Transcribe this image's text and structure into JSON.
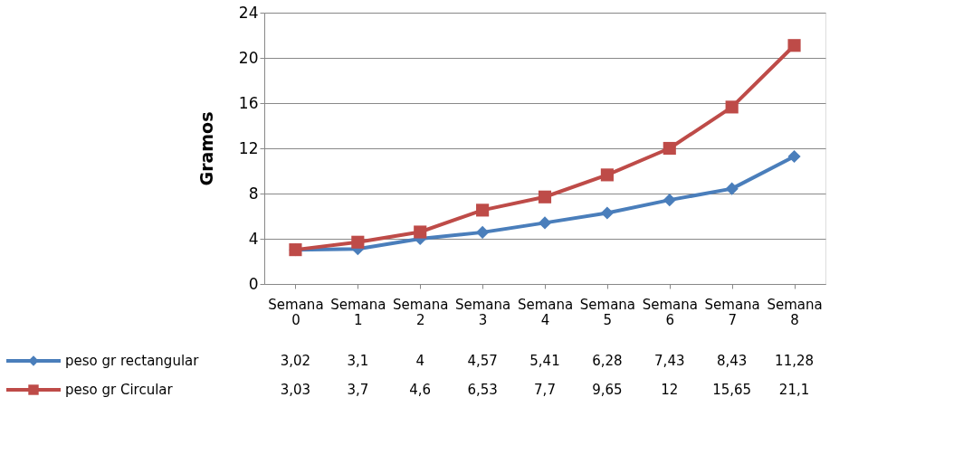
{
  "chart_data": {
    "type": "line",
    "ylabel": "Gramos",
    "categories": [
      "Semana 0",
      "Semana 1",
      "Semana 2",
      "Semana 3",
      "Semana 4",
      "Semana 5",
      "Semana 6",
      "Semana 7",
      "Semana 8"
    ],
    "series": [
      {
        "name": "peso gr rectangular",
        "color": "#4a7ebb",
        "marker": "diamond",
        "values": [
          3.02,
          3.1,
          4,
          4.57,
          5.41,
          6.28,
          7.43,
          8.43,
          11.28
        ],
        "value_labels": [
          "3,02",
          "3,1",
          "4",
          "4,57",
          "5,41",
          "6,28",
          "7,43",
          "8,43",
          "11,28"
        ]
      },
      {
        "name": "peso gr Circular",
        "color": "#be4b48",
        "marker": "square",
        "values": [
          3.03,
          3.7,
          4.6,
          6.53,
          7.7,
          9.65,
          12,
          15.65,
          21.1
        ],
        "value_labels": [
          "3,03",
          "3,7",
          "4,6",
          "6,53",
          "7,7",
          "9,65",
          "12",
          "15,65",
          "21,1"
        ]
      }
    ],
    "ylim": [
      0,
      24
    ],
    "yticks": [
      0,
      4,
      8,
      12,
      16,
      20,
      24
    ],
    "grid": "y",
    "legend": "bottom"
  }
}
